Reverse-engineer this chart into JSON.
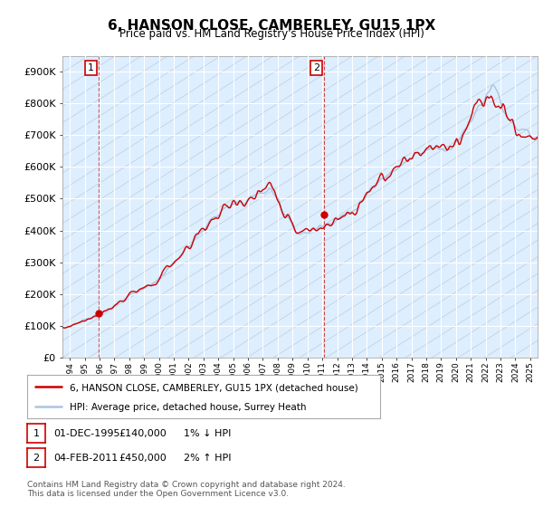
{
  "title": "6, HANSON CLOSE, CAMBERLEY, GU15 1PX",
  "subtitle": "Price paid vs. HM Land Registry's House Price Index (HPI)",
  "ylim": [
    0,
    950000
  ],
  "yticks": [
    0,
    100000,
    200000,
    300000,
    400000,
    500000,
    600000,
    700000,
    800000,
    900000
  ],
  "ytick_labels": [
    "£0",
    "£100K",
    "£200K",
    "£300K",
    "£400K",
    "£500K",
    "£600K",
    "£700K",
    "£800K",
    "£900K"
  ],
  "hpi_color": "#aac4e0",
  "price_color": "#cc0000",
  "plot_bg": "#ddeeff",
  "hatch_color": "#c0ccdd",
  "grid_color": "#ffffff",
  "legend_label_price": "6, HANSON CLOSE, CAMBERLEY, GU15 1PX (detached house)",
  "legend_label_hpi": "HPI: Average price, detached house, Surrey Heath",
  "annotation1_date": "01-DEC-1995",
  "annotation1_price": "£140,000",
  "annotation1_note": "1% ↓ HPI",
  "annotation2_date": "04-FEB-2011",
  "annotation2_price": "£450,000",
  "annotation2_note": "2% ↑ HPI",
  "footer": "Contains HM Land Registry data © Crown copyright and database right 2024.\nThis data is licensed under the Open Government Licence v3.0.",
  "sale1_x": 1995.92,
  "sale1_y": 140000,
  "sale2_x": 2011.09,
  "sale2_y": 450000,
  "xmin": 1993.5,
  "xmax": 2025.5
}
